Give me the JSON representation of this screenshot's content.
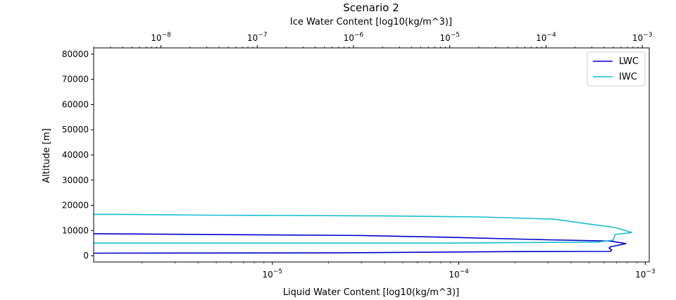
{
  "chart_data": {
    "type": "line",
    "title": "Scenario 2",
    "xlabel": "Liquid Water Content [log10(kg/m^3)]",
    "x2label": "Ice Water Content [log10(kg/m^3)]",
    "ylabel": "Altitude [m]",
    "xscale": "log",
    "x2scale": "log",
    "xlim": [
      1.1e-06,
      0.00105
    ],
    "x2lim": [
      2e-09,
      0.00118
    ],
    "ylim": [
      -2500,
      82500
    ],
    "y_ticks": [
      0,
      10000,
      20000,
      30000,
      40000,
      50000,
      60000,
      70000,
      80000
    ],
    "y_tick_labels": [
      "0",
      "10000",
      "20000",
      "30000",
      "40000",
      "50000",
      "60000",
      "70000",
      "80000"
    ],
    "x_ticks": [
      1e-05,
      0.0001,
      0.001
    ],
    "x_tick_labels": [
      {
        "base": "10",
        "exp": "−5"
      },
      {
        "base": "10",
        "exp": "−4"
      },
      {
        "base": "10",
        "exp": "−3"
      }
    ],
    "x2_ticks": [
      1e-08,
      1e-07,
      1e-06,
      1e-05,
      0.0001,
      0.001
    ],
    "x2_tick_labels": [
      {
        "base": "10",
        "exp": "−8"
      },
      {
        "base": "10",
        "exp": "−7"
      },
      {
        "base": "10",
        "exp": "−6"
      },
      {
        "base": "10",
        "exp": "−5"
      },
      {
        "base": "10",
        "exp": "−4"
      },
      {
        "base": "10",
        "exp": "−3"
      }
    ],
    "grid": false,
    "legend": {
      "position": "top-right"
    },
    "series": [
      {
        "name": "LWC",
        "color": "#0000cc",
        "axis": "bottom",
        "x": [
          1.1e-06,
          2e-05,
          0.00018,
          0.00065,
          0.00066,
          0.00064,
          0.00065,
          0.00079,
          0.00065,
          0.0003,
          0.0001,
          3e-05,
          1.1e-06
        ],
        "y": [
          1000,
          1100,
          1600,
          1700,
          2200,
          3000,
          3500,
          4800,
          5800,
          6300,
          7200,
          8000,
          8700
        ]
      },
      {
        "name": "IWC",
        "color": "#17becf",
        "axis": "top",
        "x": [
          2e-09,
          1e-05,
          0.00035,
          0.0005,
          0.00052,
          0.00078,
          0.00052,
          0.0003,
          0.00012,
          2e-05,
          2e-06,
          3e-08,
          4e-09,
          2e-09
        ],
        "y": [
          5000,
          5000,
          5400,
          6200,
          8400,
          9200,
          11200,
          12400,
          14500,
          15400,
          15800,
          16100,
          16400,
          16400
        ]
      }
    ]
  }
}
